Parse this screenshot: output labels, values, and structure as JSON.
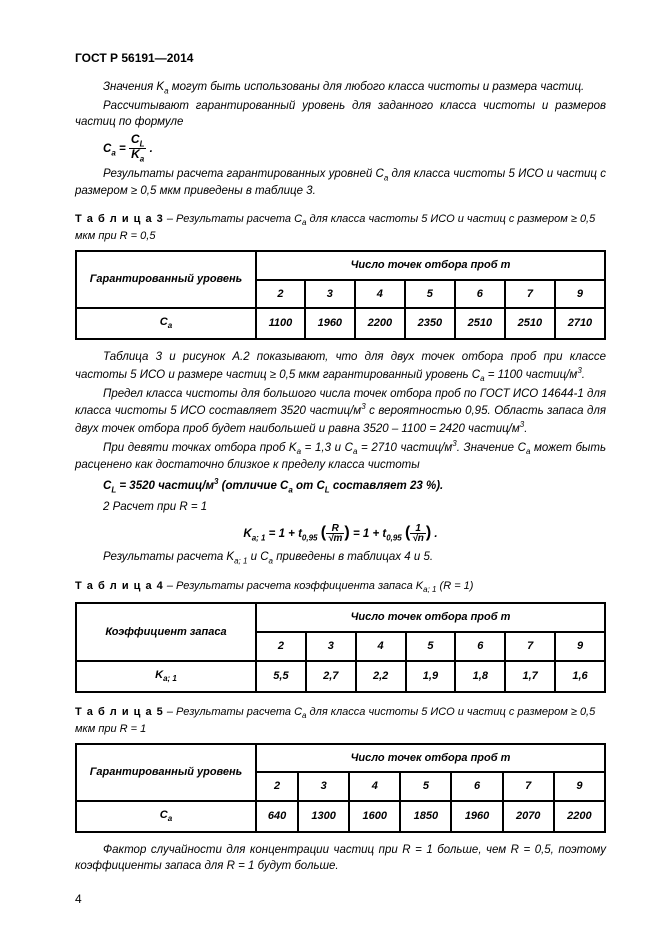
{
  "header": "ГОСТ Р 56191—2014",
  "p1": "Значения K<sub>a</sub> могут быть использованы для любого класса чистоты и размера частиц.",
  "p2": "Рассчитывают гарантированный уровень для заданного класса чистоты и размеров частиц по формуле",
  "f1_lhs": "C<sub>a</sub> =",
  "f1_num": "C<sub>L</sub>",
  "f1_den": "K<sub>a</sub>",
  "p3": "Результаты расчета гарантированных уровней C<sub>a</sub> для класса чистоты 5 ИСО и частиц с размером  ≥ 0,5 мкм приведены в таблице 3.",
  "t3_cap_prefix": "Т а б л и ц а  3",
  "t3_cap": " – Результаты расчета C<sub>a</sub> для класса частоты 5 ИСО и частиц с размером ≥ 0,5 мкм при R = 0,5",
  "col_header": "Число точек отбора проб m",
  "t3_rowlabel": "Гарантированный уровень",
  "t3_symbol": "C<sub>a</sub>",
  "m_cols": [
    "2",
    "3",
    "4",
    "5",
    "6",
    "7",
    "9"
  ],
  "t3_vals": [
    "1100",
    "1960",
    "2200",
    "2350",
    "2510",
    "2510",
    "2710"
  ],
  "p4": "Таблица 3 и рисунок А.2 показывают, что для двух точек отбора проб при классе частоты 5 ИСО и размере частиц ≥ 0,5 мкм гарантированный уровень C<sub>a</sub> = 1100 частиц/м<sup>3</sup>.",
  "p5": "Предел класса чистоты для большого числа точек отбора проб по ГОСТ ИСО 14644-1 для класса чистоты 5 ИСО составляет 3520 частиц/м<sup>3</sup> с вероятностью 0,95. Область запаса для двух точек отбора проб будет наибольшей и равна 3520 – 1100 = 2420 частиц/м<sup>3</sup>.",
  "p6": "При девяти точках отбора проб  K<sub>a</sub> = 1,3 и C<sub>a</sub> = 2710 частиц/м<sup>3</sup>. Значение C<sub>a</sub> может быть расценено как достаточно близкое к пределу класса чистоты",
  "f2": "C<sub>L</sub> = 3520  частиц/м<sup>3</sup> (отличие C<sub>a</sub> от C<sub>L</sub> составляет 23 %).",
  "p7": "2 Расчет при R = 1",
  "f3": "K<sub>a; 1</sub> = 1 + t<sub>0,95</sub> <span class=\"bigp\">(</span><span class=\"frac\"><span class=\"num\">R</span><span class=\"den\">√m</span></span><span class=\"bigp\">)</span> = 1 + t<sub>0,95</sub> <span class=\"bigp\">(</span><span class=\"frac\"><span class=\"num\">1</span><span class=\"den\">√n</span></span><span class=\"bigp\">)</span> .",
  "p8": "Результаты расчета K<sub>a; 1</sub> и C<sub>a</sub> приведены в таблицах 4 и 5.",
  "t4_cap_prefix": "Т а б л и ц а  4",
  "t4_cap": " – Результаты расчета коэффициента запаса K<sub>a; 1</sub> (R = 1)",
  "t4_rowlabel": "Коэффициент запаса",
  "t4_symbol": "K<sub>a; 1</sub>",
  "t4_vals": [
    "5,5",
    "2,7",
    "2,2",
    "1,9",
    "1,8",
    "1,7",
    "1,6"
  ],
  "t5_cap_prefix": "Т а б л и ц а  5",
  "t5_cap": " – Результаты расчета C<sub>a</sub> для класса чистоты 5 ИСО и частиц с размером ≥ 0,5 мкм при R = 1",
  "t5_rowlabel": "Гарантированный уровень",
  "t5_symbol": "C<sub>a</sub>",
  "t5_vals": [
    "640",
    "1300",
    "1600",
    "1850",
    "1960",
    "2070",
    "2200"
  ],
  "p9": "Фактор случайности для концентрации частиц при R = 1 больше, чем R = 0,5, поэтому коэффициенты запаса для R = 1 будут больше.",
  "page_num": "4"
}
